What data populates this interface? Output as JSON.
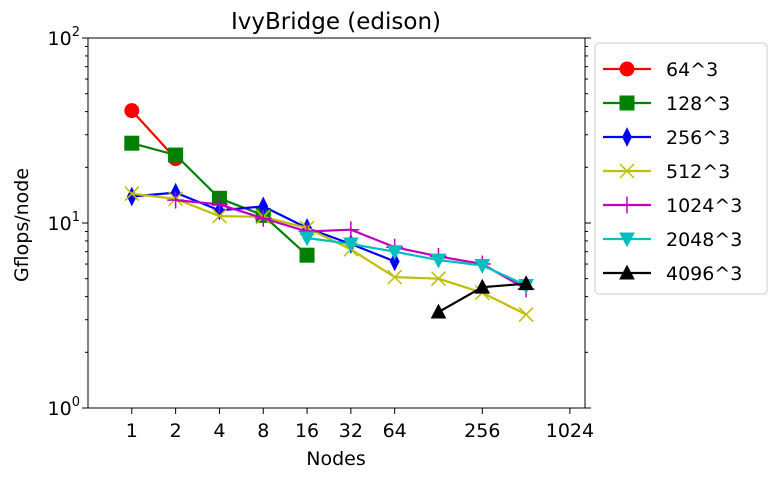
{
  "chart_data": {
    "type": "line",
    "title": "IvyBridge (edison)",
    "xlabel": "Nodes",
    "ylabel": "Gflops/node",
    "x_scale": "log2",
    "y_scale": "log10",
    "xlim": [
      0.5,
      1300
    ],
    "ylim": [
      1,
      100
    ],
    "x_ticks": [
      1,
      2,
      4,
      8,
      16,
      32,
      64,
      256,
      1024
    ],
    "x_tick_labels": [
      "1",
      "2",
      "4",
      "8",
      "16",
      "32",
      "64",
      "256",
      "1024"
    ],
    "y_ticks": [
      1,
      10,
      100
    ],
    "y_tick_labels": [
      {
        "base": "10",
        "exp": "0"
      },
      {
        "base": "10",
        "exp": "1"
      },
      {
        "base": "10",
        "exp": "2"
      }
    ],
    "legend_position": "outside-right",
    "series": [
      {
        "name": "64^3",
        "color": "#ff0000",
        "marker": "circle",
        "x": [
          1,
          2
        ],
        "y": [
          40.5,
          22.3
        ]
      },
      {
        "name": "128^3",
        "color": "#008000",
        "marker": "square",
        "x": [
          1,
          2,
          4,
          8,
          16
        ],
        "y": [
          27.0,
          23.3,
          13.6,
          11.0,
          6.7
        ]
      },
      {
        "name": "256^3",
        "color": "#0000ff",
        "marker": "thin-diamond",
        "x": [
          1,
          2,
          4,
          8,
          16,
          32,
          64
        ],
        "y": [
          13.9,
          14.6,
          11.7,
          12.3,
          9.4,
          7.7,
          6.2
        ]
      },
      {
        "name": "512^3",
        "color": "#bfbf00",
        "marker": "x",
        "x": [
          1,
          2,
          4,
          8,
          16,
          32,
          64,
          128,
          256,
          512
        ],
        "y": [
          14.4,
          13.5,
          10.9,
          10.8,
          9.4,
          7.2,
          5.1,
          5.0,
          4.2,
          3.2
        ]
      },
      {
        "name": "1024^3",
        "color": "#bf00bf",
        "marker": "plus",
        "x": [
          2,
          4,
          8,
          16,
          32,
          64,
          128,
          256,
          512
        ],
        "y": [
          13.3,
          12.6,
          10.6,
          9.0,
          9.2,
          7.4,
          6.6,
          6.0,
          4.4
        ]
      },
      {
        "name": "2048^3",
        "color": "#00bfbf",
        "marker": "triangle-down",
        "x": [
          16,
          32,
          64,
          128,
          256,
          512
        ],
        "y": [
          8.3,
          7.7,
          7.0,
          6.3,
          5.9,
          4.6
        ]
      },
      {
        "name": "4096^3",
        "color": "#000000",
        "marker": "triangle-up",
        "x": [
          128,
          256,
          512
        ],
        "y": [
          3.3,
          4.5,
          4.7
        ]
      }
    ]
  }
}
